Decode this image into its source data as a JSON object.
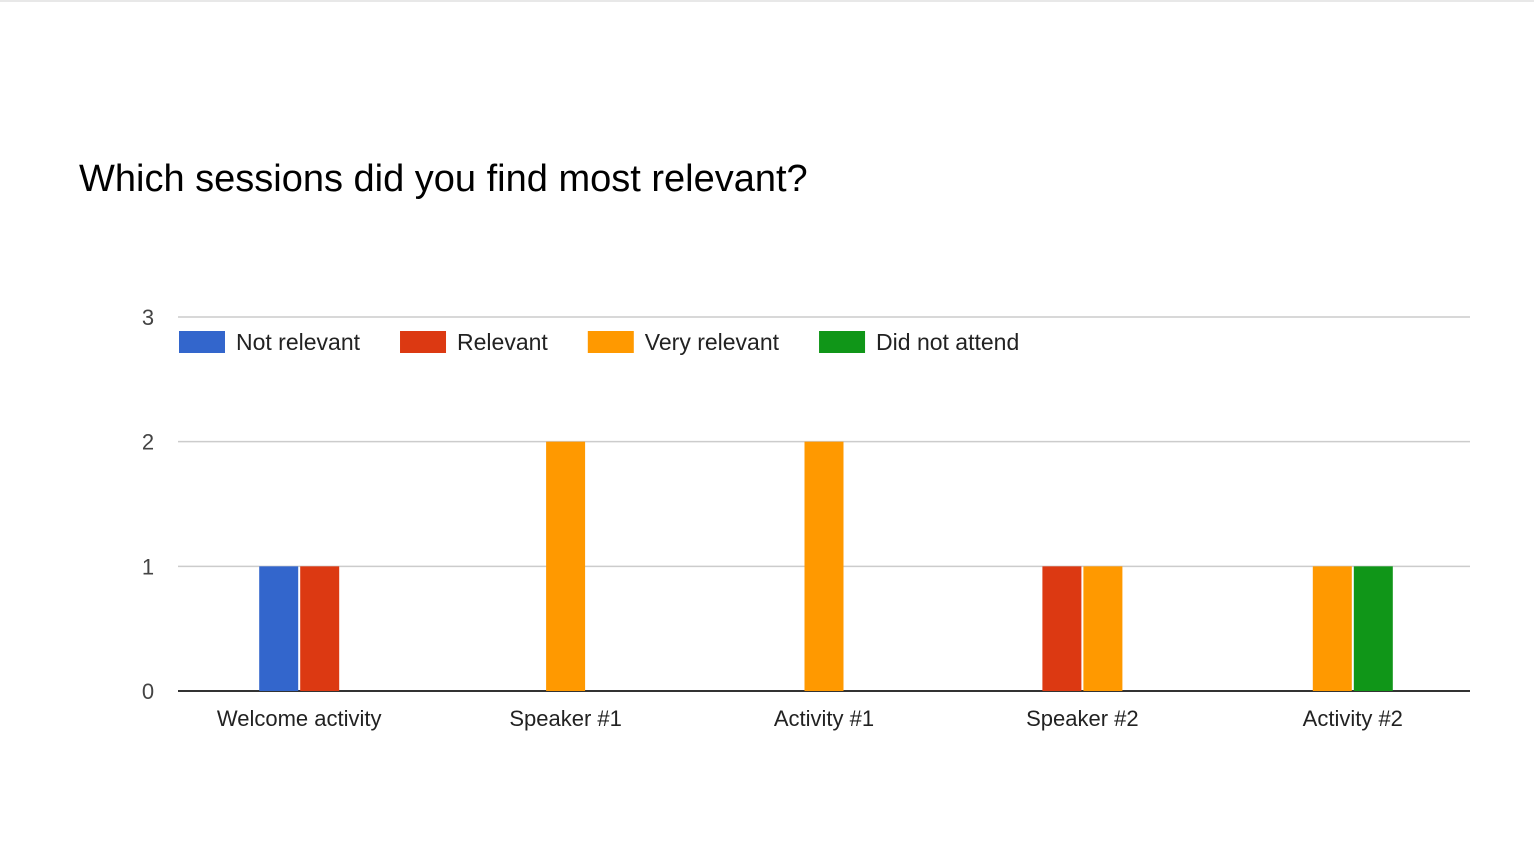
{
  "chart_data": {
    "type": "bar",
    "title": "Which sessions did you find most relevant?",
    "xlabel": "",
    "ylabel": "",
    "ylim": [
      0,
      3
    ],
    "yticks": [
      "0",
      "1",
      "2",
      "3"
    ],
    "grid": true,
    "legend_position": "top-left",
    "categories": [
      "Welcome activity",
      "Speaker #1",
      "Activity #1",
      "Speaker #2",
      "Activity #2"
    ],
    "series": [
      {
        "name": "Not relevant",
        "color": "#3366cc",
        "values": [
          1,
          0,
          0,
          0,
          0
        ]
      },
      {
        "name": "Relevant",
        "color": "#dc3912",
        "values": [
          1,
          0,
          0,
          1,
          0
        ]
      },
      {
        "name": "Very relevant",
        "color": "#ff9900",
        "values": [
          0,
          2,
          2,
          1,
          1
        ]
      },
      {
        "name": "Did not attend",
        "color": "#109618",
        "values": [
          0,
          0,
          0,
          0,
          1
        ]
      }
    ]
  }
}
